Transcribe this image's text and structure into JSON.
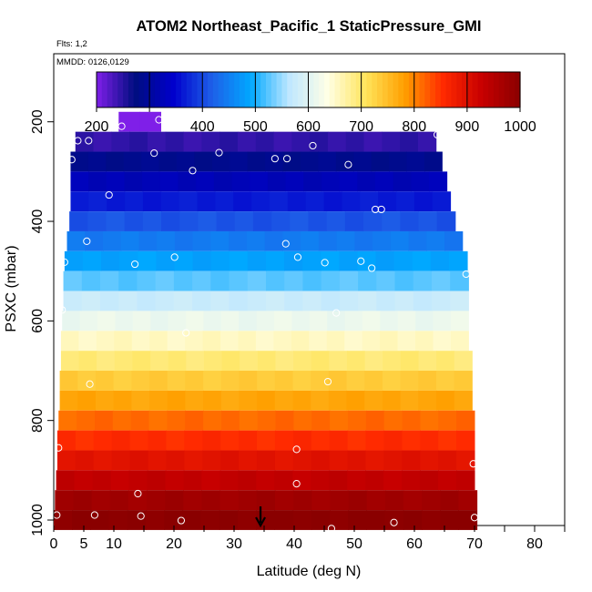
{
  "chart_data": {
    "type": "heatmap",
    "title": "ATOM2 Northeast_Pacific_1 StaticPressure_GMI",
    "flights_note": "Flts: 1,2",
    "dates_note": "MMDD: 0126,0129",
    "xlabel": "Latitude (deg N)",
    "ylabel": "PSXC (mbar)",
    "xlim": [
      0,
      85
    ],
    "ylim": [
      1000,
      0
    ],
    "x_ticks": [
      0,
      5,
      10,
      20,
      30,
      40,
      50,
      60,
      70,
      80
    ],
    "x_minor_ticks": [
      15,
      25,
      35,
      45,
      55,
      65,
      75,
      85
    ],
    "y_ticks": [
      200,
      400,
      600,
      800,
      1000
    ],
    "colorbar": {
      "range": [
        200,
        1000
      ],
      "ticks": [
        200,
        300,
        400,
        500,
        600,
        700,
        800,
        900,
        1000
      ],
      "colors": [
        "#7f1fe8",
        "#000d80",
        "#0000cc",
        "#1e5fe8",
        "#00a8ff",
        "#bfe7ff",
        "#ffffe6",
        "#ffe45a",
        "#ff9f00",
        "#ff2a00",
        "#c80000",
        "#8a0000"
      ]
    },
    "band_height_mbar": 40,
    "bands": [
      {
        "p": 200,
        "x0": 10.8,
        "x1": 17.8,
        "value": 200
      },
      {
        "p": 240,
        "x0": 3.6,
        "x1": 63.6,
        "value": 245
      },
      {
        "p": 280,
        "x0": 2.8,
        "x1": 64.6,
        "value": 285
      },
      {
        "p": 320,
        "x0": 2.8,
        "x1": 65.4,
        "value": 325
      },
      {
        "p": 360,
        "x0": 2.8,
        "x1": 66.0,
        "value": 365
      },
      {
        "p": 400,
        "x0": 2.6,
        "x1": 66.8,
        "value": 410
      },
      {
        "p": 440,
        "x0": 2.2,
        "x1": 68.0,
        "value": 445
      },
      {
        "p": 480,
        "x0": 1.8,
        "x1": 68.8,
        "value": 485
      },
      {
        "p": 520,
        "x0": 1.6,
        "x1": 69.0,
        "value": 525
      },
      {
        "p": 560,
        "x0": 1.6,
        "x1": 69.0,
        "value": 575
      },
      {
        "p": 600,
        "x0": 1.4,
        "x1": 69.0,
        "value": 615
      },
      {
        "p": 640,
        "x0": 1.2,
        "x1": 69.0,
        "value": 655
      },
      {
        "p": 680,
        "x0": 1.2,
        "x1": 69.6,
        "value": 695
      },
      {
        "p": 720,
        "x0": 1.0,
        "x1": 69.6,
        "value": 735
      },
      {
        "p": 760,
        "x0": 1.0,
        "x1": 69.6,
        "value": 775
      },
      {
        "p": 800,
        "x0": 0.8,
        "x1": 70.0,
        "value": 815
      },
      {
        "p": 840,
        "x0": 0.6,
        "x1": 70.0,
        "value": 855
      },
      {
        "p": 880,
        "x0": 0.6,
        "x1": 70.0,
        "value": 895
      },
      {
        "p": 920,
        "x0": 0.4,
        "x1": 70.0,
        "value": 935
      },
      {
        "p": 960,
        "x0": 0.2,
        "x1": 70.4,
        "value": 975
      },
      {
        "p": 1000,
        "x0": 0.0,
        "x1": 70.4,
        "value": 1000
      }
    ],
    "points": [
      {
        "x": 11.3,
        "y": 209
      },
      {
        "x": 17.5,
        "y": 196
      },
      {
        "x": 4.0,
        "y": 238
      },
      {
        "x": 5.8,
        "y": 238
      },
      {
        "x": 16.7,
        "y": 263
      },
      {
        "x": 27.5,
        "y": 262
      },
      {
        "x": 3.0,
        "y": 276
      },
      {
        "x": 23.1,
        "y": 298
      },
      {
        "x": 36.8,
        "y": 274
      },
      {
        "x": 38.8,
        "y": 274
      },
      {
        "x": 43.1,
        "y": 248
      },
      {
        "x": 49.0,
        "y": 286
      },
      {
        "x": 63.8,
        "y": 226
      },
      {
        "x": 9.2,
        "y": 347
      },
      {
        "x": 53.5,
        "y": 376
      },
      {
        "x": 54.5,
        "y": 376
      },
      {
        "x": 5.5,
        "y": 440
      },
      {
        "x": 38.6,
        "y": 445
      },
      {
        "x": 1.8,
        "y": 482
      },
      {
        "x": 13.5,
        "y": 486
      },
      {
        "x": 20.1,
        "y": 472
      },
      {
        "x": 40.6,
        "y": 472
      },
      {
        "x": 45.1,
        "y": 483
      },
      {
        "x": 51.1,
        "y": 480
      },
      {
        "x": 52.9,
        "y": 494
      },
      {
        "x": 68.6,
        "y": 506
      },
      {
        "x": 1.4,
        "y": 578
      },
      {
        "x": 47.0,
        "y": 584
      },
      {
        "x": 22.0,
        "y": 624
      },
      {
        "x": 6.0,
        "y": 727
      },
      {
        "x": 45.6,
        "y": 722
      },
      {
        "x": 0.8,
        "y": 855
      },
      {
        "x": 40.4,
        "y": 858
      },
      {
        "x": 69.8,
        "y": 887
      },
      {
        "x": 40.4,
        "y": 927
      },
      {
        "x": 14.0,
        "y": 947
      },
      {
        "x": 0.5,
        "y": 990
      },
      {
        "x": 6.8,
        "y": 990
      },
      {
        "x": 14.5,
        "y": 992
      },
      {
        "x": 21.2,
        "y": 1001
      },
      {
        "x": 46.2,
        "y": 1017
      },
      {
        "x": 56.6,
        "y": 1005
      },
      {
        "x": 70.0,
        "y": 995
      }
    ],
    "arrow_latitude": 34.4
  }
}
